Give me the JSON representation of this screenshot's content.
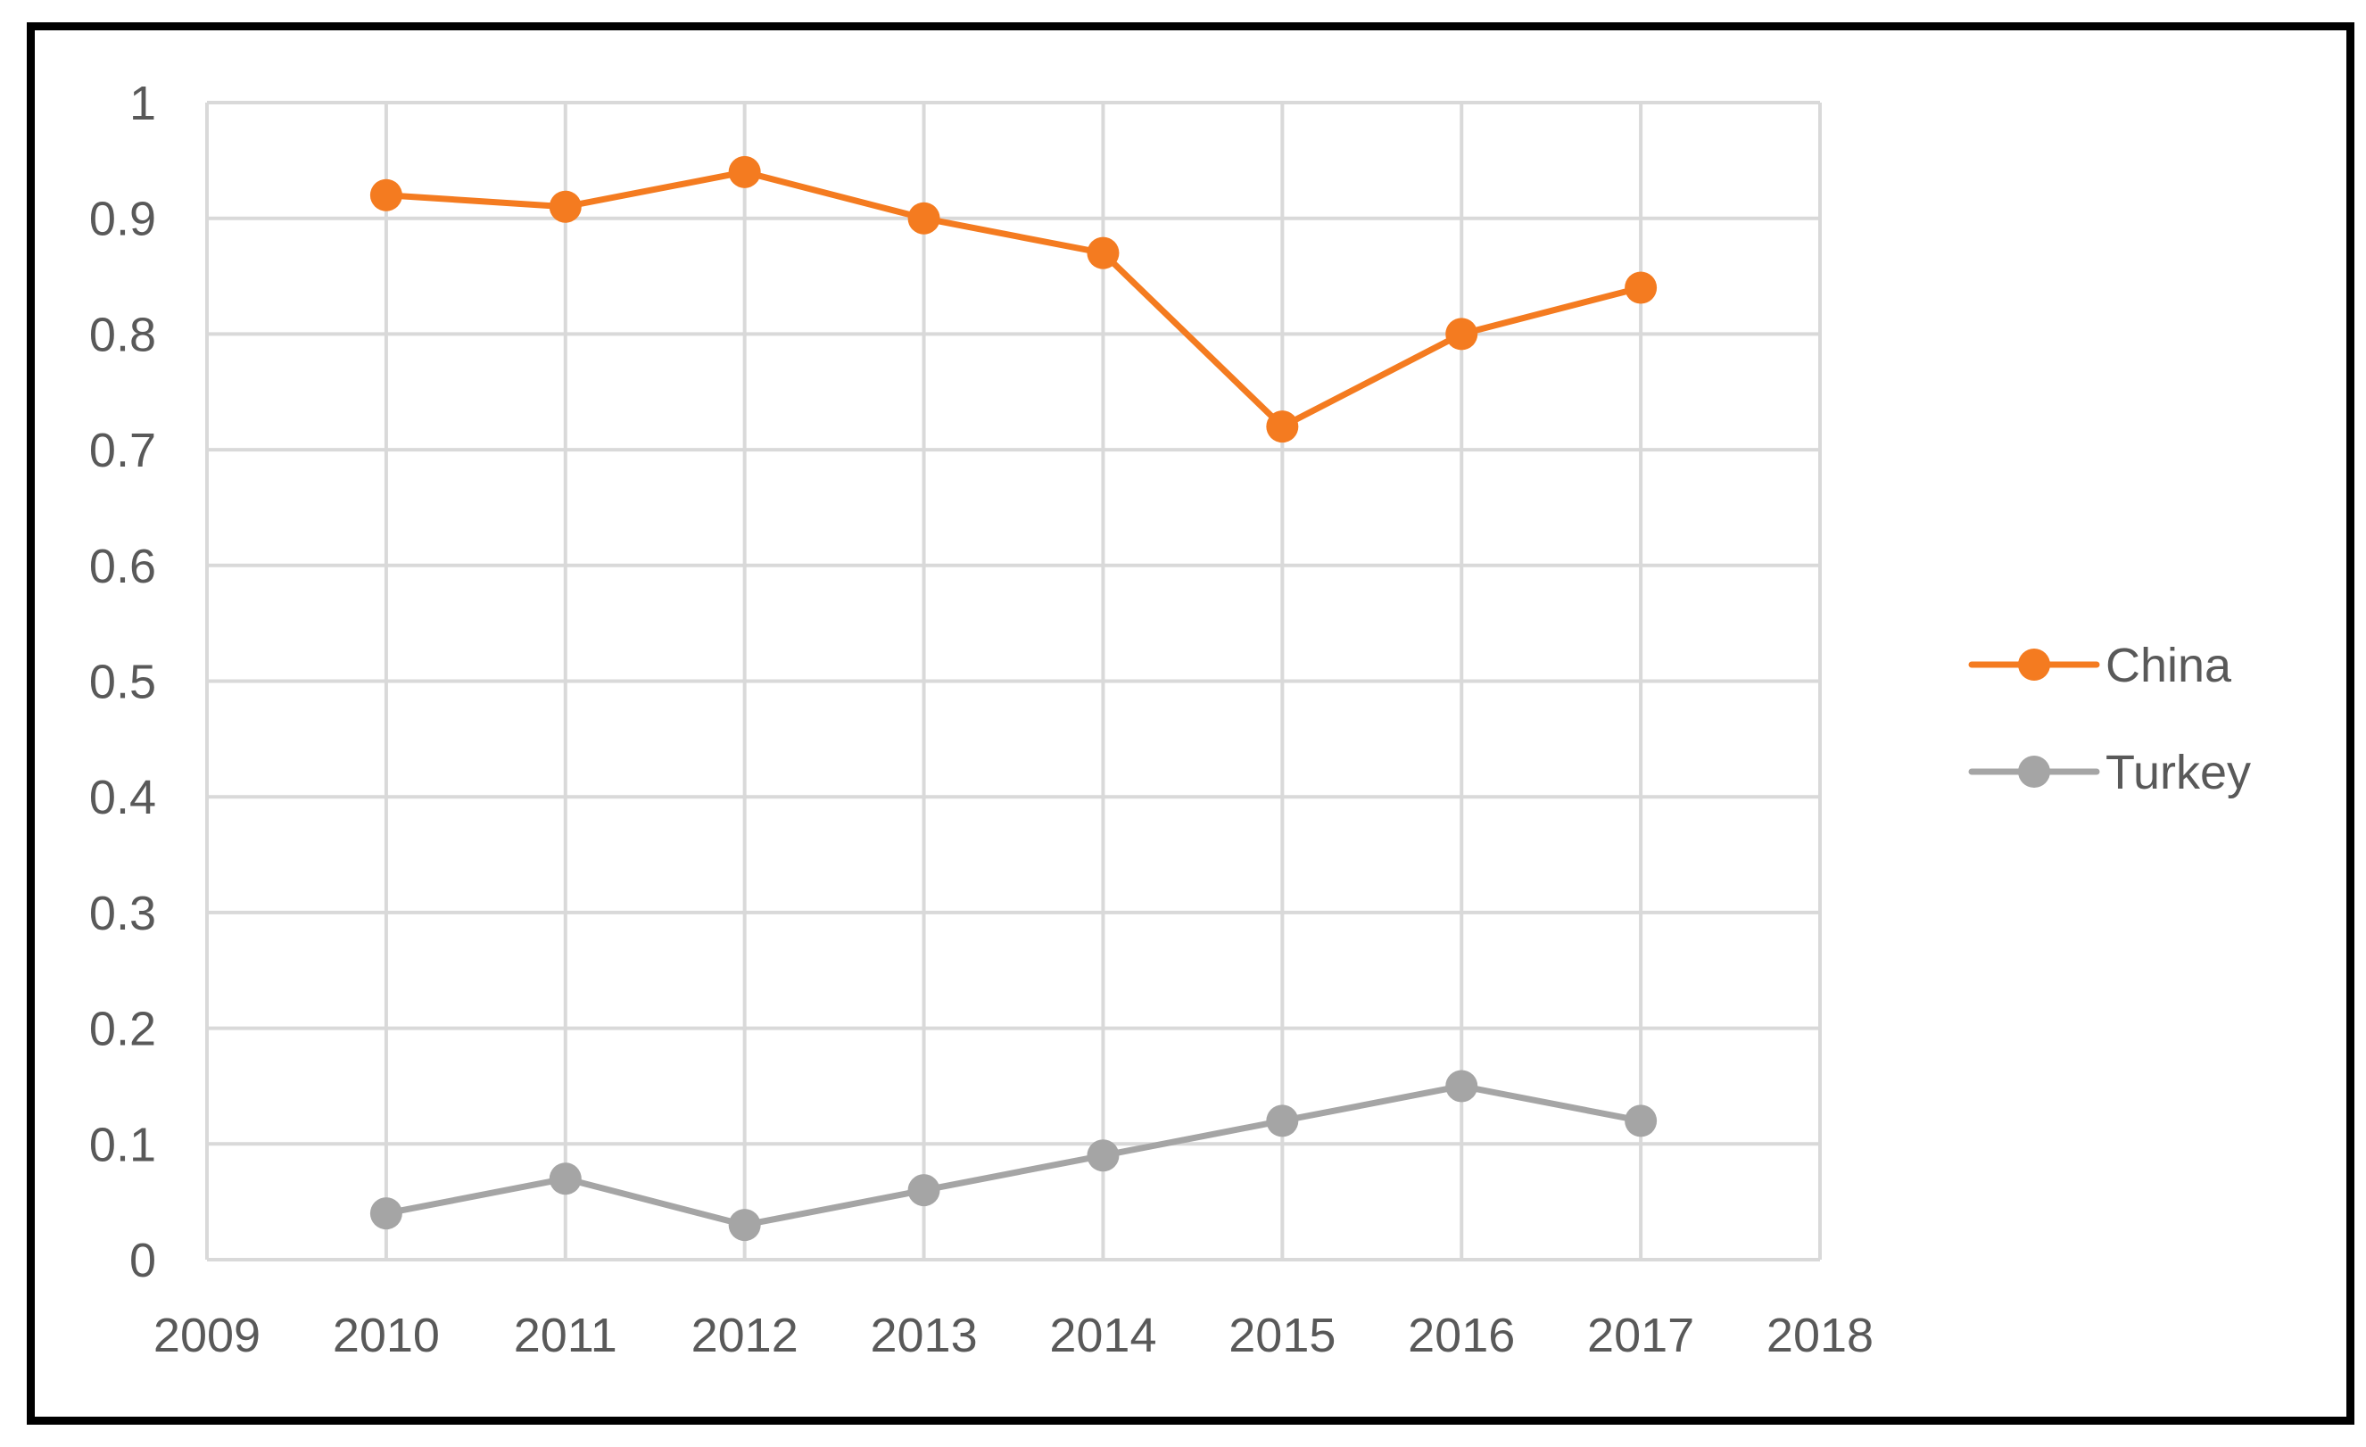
{
  "chart_data": {
    "type": "line",
    "title": "",
    "xlabel": "",
    "ylabel": "",
    "xlim": [
      2009,
      2018
    ],
    "ylim": [
      0,
      1
    ],
    "x_ticks": [
      "2009",
      "2010",
      "2011",
      "2012",
      "2013",
      "2014",
      "2015",
      "2016",
      "2017",
      "2018"
    ],
    "y_ticks": [
      "0",
      "0.1",
      "0.2",
      "0.3",
      "0.4",
      "0.5",
      "0.6",
      "0.7",
      "0.8",
      "0.9",
      "1"
    ],
    "x": [
      2010,
      2011,
      2012,
      2013,
      2014,
      2015,
      2016,
      2017
    ],
    "series": [
      {
        "name": "China",
        "color": "#F47B20",
        "values": [
          0.92,
          0.91,
          0.94,
          0.9,
          0.87,
          0.72,
          0.8,
          0.84
        ]
      },
      {
        "name": "Turkey",
        "color": "#A5A5A5",
        "values": [
          0.04,
          0.07,
          0.03,
          0.06,
          0.09,
          0.12,
          0.15,
          0.12
        ]
      }
    ],
    "grid": true,
    "legend": "right",
    "gridline_color": "#D9D9D9",
    "text_color": "#595959"
  }
}
